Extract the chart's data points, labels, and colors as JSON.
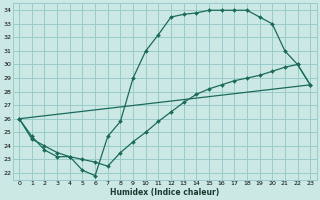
{
  "xlabel": "Humidex (Indice chaleur)",
  "bg_color": "#cce8e4",
  "grid_color": "#99cccc",
  "line_color": "#1a6b5a",
  "xlim": [
    -0.5,
    23.5
  ],
  "ylim": [
    21.5,
    34.5
  ],
  "xticks": [
    0,
    1,
    2,
    3,
    4,
    5,
    6,
    7,
    8,
    9,
    10,
    11,
    12,
    13,
    14,
    15,
    16,
    17,
    18,
    19,
    20,
    21,
    22,
    23
  ],
  "yticks": [
    22,
    23,
    24,
    25,
    26,
    27,
    28,
    29,
    30,
    31,
    32,
    33,
    34
  ],
  "curve1_x": [
    0,
    1,
    2,
    3,
    4,
    5,
    6,
    7,
    8,
    9,
    10,
    11,
    12,
    13,
    14,
    15,
    16,
    17,
    18,
    19,
    20,
    21,
    22,
    23
  ],
  "curve1_y": [
    26.0,
    24.7,
    23.7,
    23.2,
    23.2,
    22.2,
    21.8,
    24.7,
    25.8,
    29.0,
    31.0,
    32.2,
    33.5,
    33.7,
    33.8,
    34.0,
    34.0,
    34.0,
    34.0,
    33.5,
    33.0,
    31.0,
    30.0,
    28.5
  ],
  "curve2_x": [
    0,
    1,
    2,
    3,
    4,
    5,
    6,
    7,
    8,
    9,
    10,
    11,
    12,
    13,
    14,
    15,
    16,
    17,
    18,
    19,
    20,
    21,
    22,
    23
  ],
  "curve2_y": [
    26.0,
    24.5,
    24.0,
    23.5,
    23.2,
    23.0,
    22.8,
    22.5,
    23.5,
    24.3,
    25.0,
    25.8,
    26.5,
    27.2,
    27.8,
    28.2,
    28.5,
    28.8,
    29.0,
    29.2,
    29.5,
    29.8,
    30.0,
    28.5
  ],
  "curve3_x": [
    0,
    23
  ],
  "curve3_y": [
    26.0,
    28.5
  ]
}
